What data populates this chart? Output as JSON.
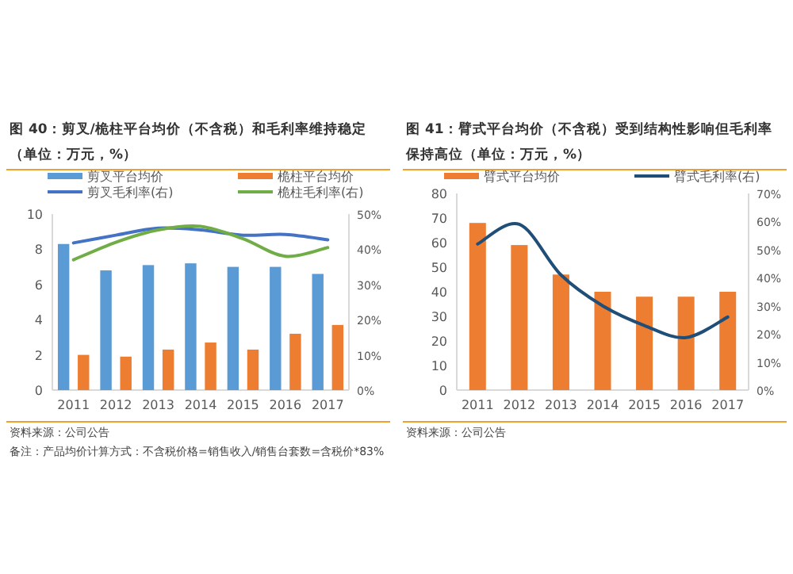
{
  "chart_data": [
    {
      "type": "bar",
      "title": "图 40：剪叉/桅柱平台均价（不含税）和毛利率维持稳定（单位：万元，%）",
      "categories": [
        "2011",
        "2012",
        "2013",
        "2014",
        "2015",
        "2016",
        "2017"
      ],
      "series": [
        {
          "name": "剪叉平台均价",
          "color": "#5b9bd5",
          "values": [
            8.3,
            6.8,
            7.1,
            7.2,
            7.0,
            7.0,
            6.6
          ]
        },
        {
          "name": "桅柱平台均价",
          "color": "#ed7d31",
          "values": [
            2.0,
            1.9,
            2.3,
            2.7,
            2.3,
            3.2,
            3.7
          ]
        },
        {
          "name": "剪叉毛利率(右)",
          "type": "line",
          "axis": "y2",
          "color": "#4472c4",
          "values": [
            41.8,
            44,
            46,
            45.5,
            44,
            44.2,
            42.7
          ]
        },
        {
          "name": "桅柱毛利率(右)",
          "type": "line",
          "axis": "y2",
          "color": "#70ad47",
          "values": [
            37,
            42,
            45.5,
            46.5,
            43,
            38,
            40.5
          ]
        }
      ],
      "ylim": [
        0,
        10
      ],
      "yticks": [
        0,
        2,
        4,
        6,
        8,
        10
      ],
      "y2lim": [
        0,
        50
      ],
      "y2ticks": [
        {
          "value": 0,
          "label": "0%"
        },
        {
          "value": 10,
          "label": "10%"
        },
        {
          "value": 20,
          "label": "20%"
        },
        {
          "value": 30,
          "label": "30%"
        },
        {
          "value": 40,
          "label": "40%"
        },
        {
          "value": 50,
          "label": "50%"
        }
      ],
      "legend": "top",
      "annotations": [
        "资料来源：公司公告",
        "备注：产品均价计算方式：不含税价格=销售收入/销售台套数=含税价*83%"
      ]
    },
    {
      "type": "bar",
      "title": "图 41：臂式平台均价（不含税）受到结构性影响但毛利率保持高位（单位：万元，%）",
      "categories": [
        "2011",
        "2012",
        "2013",
        "2014",
        "2015",
        "2016",
        "2017"
      ],
      "series": [
        {
          "name": "臂式平台均价",
          "color": "#ed7d31",
          "values": [
            68,
            59,
            47,
            40,
            38,
            38,
            40
          ]
        },
        {
          "name": "臂式毛利率(右)",
          "type": "line",
          "axis": "y2",
          "color": "#1f4e79",
          "values": [
            52,
            59,
            41,
            30,
            23,
            18.7,
            26
          ]
        }
      ],
      "ylim": [
        0,
        80
      ],
      "yticks": [
        0,
        10,
        20,
        30,
        40,
        50,
        60,
        70,
        80
      ],
      "y2lim": [
        0,
        70
      ],
      "y2ticks": [
        {
          "value": 0,
          "label": "0%"
        },
        {
          "value": 10,
          "label": "10%"
        },
        {
          "value": 20,
          "label": "20%"
        },
        {
          "value": 30,
          "label": "30%"
        },
        {
          "value": 40,
          "label": "40%"
        },
        {
          "value": 50,
          "label": "50%"
        },
        {
          "value": 60,
          "label": "60%"
        },
        {
          "value": 70,
          "label": "70%"
        }
      ],
      "legend": "top",
      "annotations": [
        "资料来源：公司公告"
      ]
    }
  ]
}
